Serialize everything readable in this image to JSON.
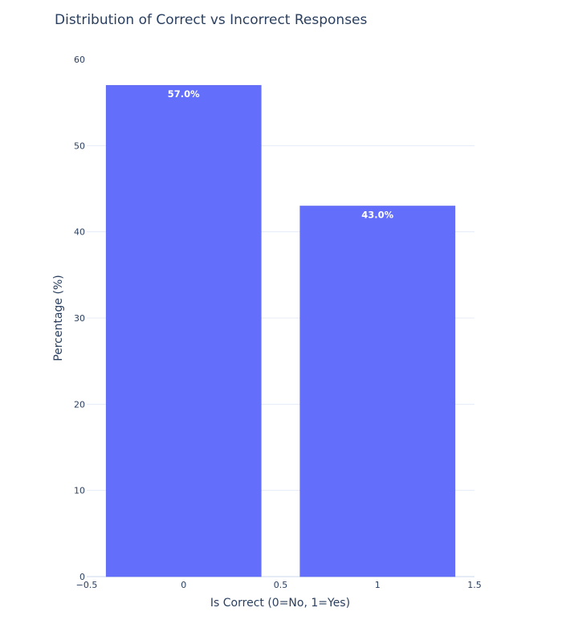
{
  "chart_data": {
    "type": "bar",
    "title": "Distribution of Correct vs Incorrect Responses",
    "xlabel": "Is Correct (0=No, 1=Yes)",
    "ylabel": "Percentage (%)",
    "x": [
      0,
      1
    ],
    "values": [
      57.0,
      43.0
    ],
    "data_labels": [
      "57.0%",
      "43.0%"
    ],
    "xlim": [
      -0.5,
      1.5
    ],
    "ylim": [
      0,
      60
    ],
    "x_ticks": [
      "−0.5",
      "0",
      "0.5",
      "1",
      "1.5"
    ],
    "x_tick_values": [
      -0.5,
      0,
      0.5,
      1,
      1.5
    ],
    "y_ticks": [
      "0",
      "10",
      "20",
      "30",
      "40",
      "50",
      "60"
    ],
    "y_tick_values": [
      0,
      10,
      20,
      30,
      40,
      50,
      60
    ],
    "bar_width": 0.8,
    "grid": true,
    "colors": {
      "bar": "#636efa",
      "grid": "#e5ecf6",
      "text": "#2a3f5f",
      "label": "#ffffff"
    }
  }
}
